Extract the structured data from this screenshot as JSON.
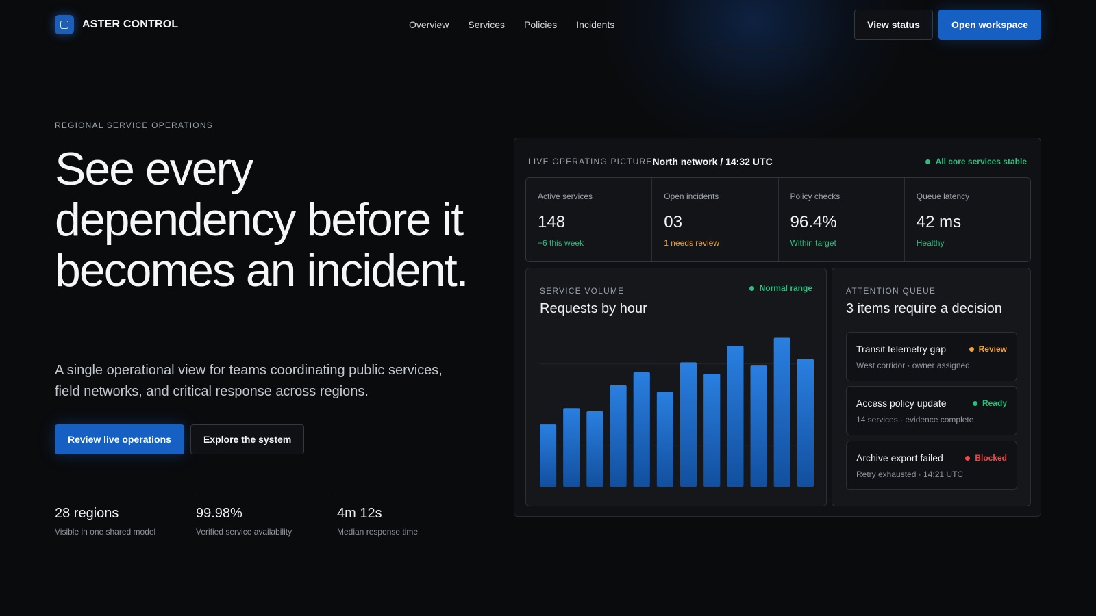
{
  "header": {
    "brand": "ASTER CONTROL",
    "nav": [
      "Overview",
      "Services",
      "Policies",
      "Incidents"
    ],
    "view_status": "View status",
    "open_workspace": "Open workspace"
  },
  "hero": {
    "eyebrow": "REGIONAL SERVICE OPERATIONS",
    "headline": "See every dependency before it becomes an incident.",
    "subtitle": "A single operational view for teams coordinating public services, field networks, and critical response across regions.",
    "primary_cta": "Review live operations",
    "secondary_cta": "Explore the system",
    "stats": [
      {
        "value": "28 regions",
        "label": "Visible in one shared model"
      },
      {
        "value": "99.98%",
        "label": "Verified service availability"
      },
      {
        "value": "4m 12s",
        "label": "Median response time"
      }
    ]
  },
  "panel": {
    "eyebrow": "LIVE OPERATING PICTURE",
    "context": "North network / 14:32 UTC",
    "status": "All core services stable",
    "metrics": [
      {
        "label": "Active services",
        "value": "148",
        "note": "+6 this week",
        "tone": "green"
      },
      {
        "label": "Open incidents",
        "value": "03",
        "note": "1 needs review",
        "tone": "orange"
      },
      {
        "label": "Policy checks",
        "value": "96.4%",
        "note": "Within target",
        "tone": "green"
      },
      {
        "label": "Queue latency",
        "value": "42 ms",
        "note": "Healthy",
        "tone": "green"
      }
    ]
  },
  "chart_card": {
    "eyebrow": "SERVICE VOLUME",
    "title": "Requests by hour",
    "badge": "Normal range"
  },
  "chart_data": {
    "type": "bar",
    "title": "Requests by hour",
    "xlabel": "",
    "ylabel": "",
    "grid": true,
    "ylim": [
      0,
      100
    ],
    "values": [
      38,
      48,
      46,
      62,
      70,
      58,
      76,
      69,
      86,
      74,
      91,
      78
    ],
    "color": "#1f6fd1"
  },
  "queue": {
    "eyebrow": "ATTENTION QUEUE",
    "title": "3 items require a decision",
    "items": [
      {
        "title": "Transit telemetry gap",
        "status": "Review",
        "meta": "West corridor · owner assigned",
        "tone": "orange"
      },
      {
        "title": "Access policy update",
        "status": "Ready",
        "meta": "14 services · evidence complete",
        "tone": "green"
      },
      {
        "title": "Archive export failed",
        "status": "Blocked",
        "meta": "Retry exhausted · 14:21 UTC",
        "tone": "red"
      }
    ]
  },
  "colors": {
    "background": "#0a0b0d",
    "accent": "#1660c4",
    "ok": "#2bbf7e",
    "warn": "#f0a23a",
    "error": "#ef4a4a"
  }
}
